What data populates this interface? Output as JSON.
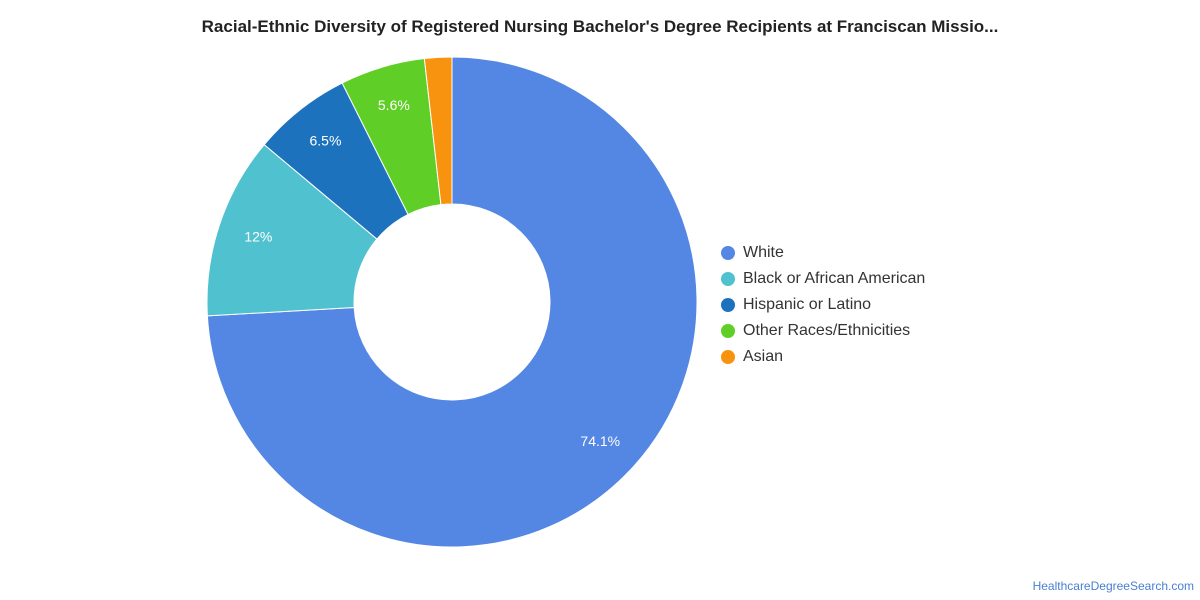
{
  "chart_data": {
    "type": "pie",
    "title": "Racial-Ethnic Diversity of Registered Nursing Bachelor's Degree Recipients at Franciscan Missio...",
    "legend_position": "right",
    "slices": [
      {
        "name": "White",
        "value": 74.1,
        "label": "74.1%",
        "color": "#5486e3"
      },
      {
        "name": "Black or African American",
        "value": 12.0,
        "label": "12%",
        "color": "#50c2cf"
      },
      {
        "name": "Hispanic or Latino",
        "value": 6.5,
        "label": "6.5%",
        "color": "#1c72bd"
      },
      {
        "name": "Other Races/Ethnicities",
        "value": 5.6,
        "label": "5.6%",
        "color": "#5fcf28"
      },
      {
        "name": "Asian",
        "value": 1.8,
        "label": "",
        "color": "#f7930f"
      }
    ]
  },
  "footer": {
    "source": "HealthcareDegreeSearch.com"
  }
}
